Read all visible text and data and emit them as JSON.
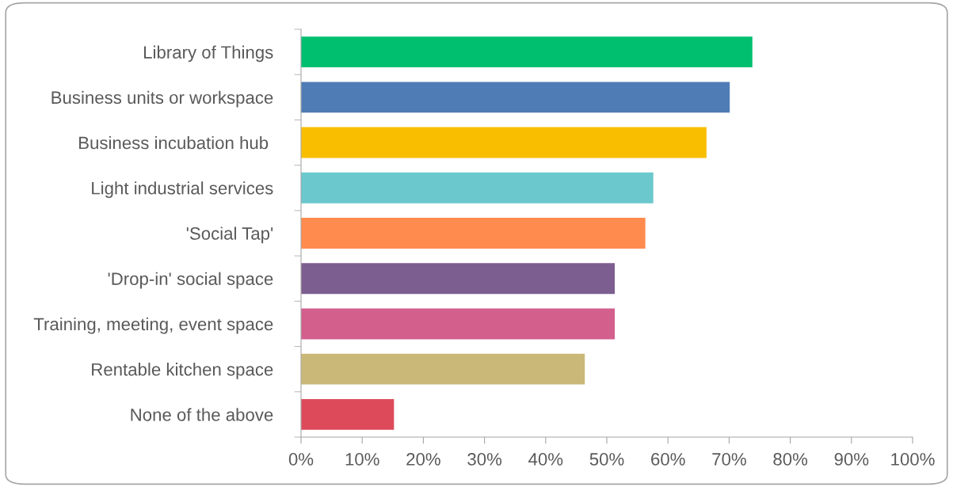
{
  "chart_data": {
    "type": "bar",
    "orientation": "horizontal",
    "categories": [
      "Library of Things",
      "Business units or workspace",
      "Business incubation hub ",
      "Light industrial services",
      "'Social Tap'",
      "'Drop-in' social space",
      "Training, meeting, event space",
      "Rentable kitchen space",
      "None of the above"
    ],
    "values": [
      73.8,
      70.1,
      66.3,
      57.6,
      56.3,
      51.3,
      51.3,
      46.4,
      15.2
    ],
    "colors": [
      "#00bf6f",
      "#507cb6",
      "#f9be00",
      "#6bc8cd",
      "#ff8b4f",
      "#7d5e90",
      "#d35f8d",
      "#c9b877",
      "#dd4b5a"
    ],
    "xlim": [
      0,
      100
    ],
    "xticks": [
      {
        "value": 0,
        "label": "0%"
      },
      {
        "value": 10,
        "label": "10%"
      },
      {
        "value": 20,
        "label": "20%"
      },
      {
        "value": 30,
        "label": "30%"
      },
      {
        "value": 40,
        "label": "40%"
      },
      {
        "value": 50,
        "label": "50%"
      },
      {
        "value": 60,
        "label": "60%"
      },
      {
        "value": 70,
        "label": "70%"
      },
      {
        "value": 80,
        "label": "80%"
      },
      {
        "value": 90,
        "label": "90%"
      },
      {
        "value": 100,
        "label": "100%"
      }
    ],
    "grid": false,
    "legend": false
  }
}
